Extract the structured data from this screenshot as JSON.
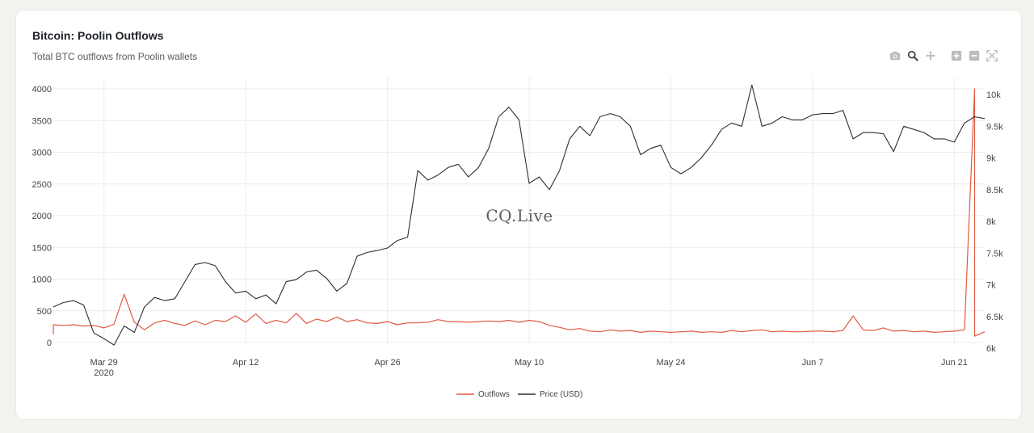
{
  "chart_title": "Bitcoin: Poolin Outflows",
  "chart_subtitle": "Total BTC outflows from Poolin wallets",
  "watermark": "CQ.Live",
  "toolbar": {
    "icons": [
      "camera-icon",
      "zoom-icon",
      "pan-icon",
      "zoom-in-icon",
      "zoom-out-icon",
      "autoscale-icon"
    ]
  },
  "colors": {
    "outflows": "#e05a42",
    "price": "#2b2f38",
    "grid": "#ececec"
  },
  "chart_data": {
    "type": "line",
    "title": "Bitcoin: Poolin Outflows",
    "subtitle": "Total BTC outflows from Poolin wallets",
    "x_tick_labels": [
      {
        "label": "Mar 29",
        "sub": "2020",
        "date": "2020-03-29"
      },
      {
        "label": "Apr 12",
        "sub": "",
        "date": "2020-04-12"
      },
      {
        "label": "Apr 26",
        "sub": "",
        "date": "2020-04-26"
      },
      {
        "label": "May 10",
        "sub": "",
        "date": "2020-05-10"
      },
      {
        "label": "May 24",
        "sub": "",
        "date": "2020-05-24"
      },
      {
        "label": "Jun 7",
        "sub": "",
        "date": "2020-06-07"
      },
      {
        "label": "Jun 21",
        "sub": "",
        "date": "2020-06-21"
      }
    ],
    "xrange": [
      "2020-03-24",
      "2020-06-24"
    ],
    "y_left": {
      "range": [
        0,
        4000
      ],
      "ticks": [
        "0",
        "500",
        "1000",
        "1500",
        "2000",
        "2500",
        "3000",
        "3500",
        "4000"
      ]
    },
    "y_right": {
      "range": [
        6000,
        10000
      ],
      "ticks": [
        "6k",
        "6.5k",
        "7k",
        "7.5k",
        "8k",
        "8.5k",
        "9k",
        "9.5k",
        "10k"
      ]
    },
    "grid": true,
    "legend_position": "bottom-center",
    "series": [
      {
        "name": "Outflows",
        "axis": "left",
        "style": "line",
        "points": [
          [
            "2020-03-24",
            130
          ],
          [
            "2020-03-24",
            280
          ],
          [
            "2020-03-25",
            270
          ],
          [
            "2020-03-26",
            280
          ],
          [
            "2020-03-27",
            260
          ],
          [
            "2020-03-28",
            270
          ],
          [
            "2020-03-29",
            230
          ],
          [
            "2020-03-30",
            290
          ],
          [
            "2020-03-31",
            760
          ],
          [
            "2020-04-01",
            320
          ],
          [
            "2020-04-02",
            200
          ],
          [
            "2020-04-03",
            310
          ],
          [
            "2020-04-04",
            350
          ],
          [
            "2020-04-05",
            300
          ],
          [
            "2020-04-06",
            270
          ],
          [
            "2020-04-07",
            340
          ],
          [
            "2020-04-08",
            280
          ],
          [
            "2020-04-09",
            350
          ],
          [
            "2020-04-10",
            330
          ],
          [
            "2020-04-11",
            420
          ],
          [
            "2020-04-12",
            320
          ],
          [
            "2020-04-13",
            450
          ],
          [
            "2020-04-14",
            300
          ],
          [
            "2020-04-15",
            350
          ],
          [
            "2020-04-16",
            310
          ],
          [
            "2020-04-17",
            460
          ],
          [
            "2020-04-18",
            300
          ],
          [
            "2020-04-19",
            370
          ],
          [
            "2020-04-20",
            330
          ],
          [
            "2020-04-21",
            400
          ],
          [
            "2020-04-22",
            330
          ],
          [
            "2020-04-23",
            360
          ],
          [
            "2020-04-24",
            310
          ],
          [
            "2020-04-25",
            300
          ],
          [
            "2020-04-26",
            330
          ],
          [
            "2020-04-27",
            280
          ],
          [
            "2020-04-28",
            310
          ],
          [
            "2020-04-29",
            310
          ],
          [
            "2020-04-30",
            320
          ],
          [
            "2020-05-01",
            360
          ],
          [
            "2020-05-02",
            330
          ],
          [
            "2020-05-03",
            330
          ],
          [
            "2020-05-04",
            320
          ],
          [
            "2020-05-05",
            330
          ],
          [
            "2020-05-06",
            340
          ],
          [
            "2020-05-07",
            330
          ],
          [
            "2020-05-08",
            350
          ],
          [
            "2020-05-09",
            320
          ],
          [
            "2020-05-10",
            350
          ],
          [
            "2020-05-11",
            330
          ],
          [
            "2020-05-12",
            270
          ],
          [
            "2020-05-13",
            240
          ],
          [
            "2020-05-14",
            200
          ],
          [
            "2020-05-15",
            220
          ],
          [
            "2020-05-16",
            180
          ],
          [
            "2020-05-17",
            170
          ],
          [
            "2020-05-18",
            200
          ],
          [
            "2020-05-19",
            180
          ],
          [
            "2020-05-20",
            190
          ],
          [
            "2020-05-21",
            160
          ],
          [
            "2020-05-22",
            180
          ],
          [
            "2020-05-23",
            170
          ],
          [
            "2020-05-24",
            160
          ],
          [
            "2020-05-25",
            170
          ],
          [
            "2020-05-26",
            180
          ],
          [
            "2020-05-27",
            160
          ],
          [
            "2020-05-28",
            170
          ],
          [
            "2020-05-29",
            160
          ],
          [
            "2020-05-30",
            190
          ],
          [
            "2020-05-31",
            170
          ],
          [
            "2020-06-01",
            190
          ],
          [
            "2020-06-02",
            200
          ],
          [
            "2020-06-03",
            170
          ],
          [
            "2020-06-04",
            180
          ],
          [
            "2020-06-05",
            170
          ],
          [
            "2020-06-06",
            170
          ],
          [
            "2020-06-07",
            180
          ],
          [
            "2020-06-08",
            180
          ],
          [
            "2020-06-09",
            170
          ],
          [
            "2020-06-10",
            190
          ],
          [
            "2020-06-11",
            420
          ],
          [
            "2020-06-12",
            200
          ],
          [
            "2020-06-13",
            190
          ],
          [
            "2020-06-14",
            230
          ],
          [
            "2020-06-15",
            180
          ],
          [
            "2020-06-16",
            190
          ],
          [
            "2020-06-17",
            170
          ],
          [
            "2020-06-18",
            180
          ],
          [
            "2020-06-19",
            160
          ],
          [
            "2020-06-20",
            170
          ],
          [
            "2020-06-21",
            180
          ],
          [
            "2020-06-22",
            200
          ],
          [
            "2020-06-23",
            4000
          ],
          [
            "2020-06-23",
            100
          ],
          [
            "2020-06-24",
            170
          ]
        ]
      },
      {
        "name": "Price (USD)",
        "axis": "right",
        "style": "line",
        "points": [
          [
            "2020-03-24",
            6650
          ],
          [
            "2020-03-25",
            6720
          ],
          [
            "2020-03-26",
            6750
          ],
          [
            "2020-03-27",
            6680
          ],
          [
            "2020-03-28",
            6240
          ],
          [
            "2020-03-29",
            6150
          ],
          [
            "2020-03-30",
            6050
          ],
          [
            "2020-03-31",
            6350
          ],
          [
            "2020-04-01",
            6250
          ],
          [
            "2020-04-02",
            6650
          ],
          [
            "2020-04-03",
            6800
          ],
          [
            "2020-04-04",
            6750
          ],
          [
            "2020-04-05",
            6780
          ],
          [
            "2020-04-06",
            7050
          ],
          [
            "2020-04-07",
            7320
          ],
          [
            "2020-04-08",
            7350
          ],
          [
            "2020-04-09",
            7300
          ],
          [
            "2020-04-10",
            7050
          ],
          [
            "2020-04-11",
            6870
          ],
          [
            "2020-04-12",
            6900
          ],
          [
            "2020-04-13",
            6780
          ],
          [
            "2020-04-14",
            6840
          ],
          [
            "2020-04-15",
            6700
          ],
          [
            "2020-04-16",
            7050
          ],
          [
            "2020-04-17",
            7080
          ],
          [
            "2020-04-18",
            7200
          ],
          [
            "2020-04-19",
            7230
          ],
          [
            "2020-04-20",
            7100
          ],
          [
            "2020-04-21",
            6900
          ],
          [
            "2020-04-22",
            7020
          ],
          [
            "2020-04-23",
            7450
          ],
          [
            "2020-04-24",
            7510
          ],
          [
            "2020-04-25",
            7540
          ],
          [
            "2020-04-26",
            7580
          ],
          [
            "2020-04-27",
            7700
          ],
          [
            "2020-04-28",
            7750
          ],
          [
            "2020-04-29",
            8800
          ],
          [
            "2020-04-30",
            8650
          ],
          [
            "2020-05-01",
            8730
          ],
          [
            "2020-05-02",
            8850
          ],
          [
            "2020-05-03",
            8900
          ],
          [
            "2020-05-04",
            8700
          ],
          [
            "2020-05-05",
            8850
          ],
          [
            "2020-05-06",
            9150
          ],
          [
            "2020-05-07",
            9650
          ],
          [
            "2020-05-08",
            9800
          ],
          [
            "2020-05-09",
            9600
          ],
          [
            "2020-05-10",
            8600
          ],
          [
            "2020-05-11",
            8700
          ],
          [
            "2020-05-12",
            8500
          ],
          [
            "2020-05-13",
            8800
          ],
          [
            "2020-05-14",
            9300
          ],
          [
            "2020-05-15",
            9500
          ],
          [
            "2020-05-16",
            9350
          ],
          [
            "2020-05-17",
            9650
          ],
          [
            "2020-05-18",
            9700
          ],
          [
            "2020-05-19",
            9650
          ],
          [
            "2020-05-20",
            9500
          ],
          [
            "2020-05-21",
            9050
          ],
          [
            "2020-05-22",
            9150
          ],
          [
            "2020-05-23",
            9200
          ],
          [
            "2020-05-24",
            8850
          ],
          [
            "2020-05-25",
            8750
          ],
          [
            "2020-05-26",
            8850
          ],
          [
            "2020-05-27",
            9000
          ],
          [
            "2020-05-28",
            9200
          ],
          [
            "2020-05-29",
            9450
          ],
          [
            "2020-05-30",
            9550
          ],
          [
            "2020-05-31",
            9500
          ],
          [
            "2020-06-01",
            10150
          ],
          [
            "2020-06-02",
            9500
          ],
          [
            "2020-06-03",
            9550
          ],
          [
            "2020-06-04",
            9650
          ],
          [
            "2020-06-05",
            9600
          ],
          [
            "2020-06-06",
            9600
          ],
          [
            "2020-06-07",
            9680
          ],
          [
            "2020-06-08",
            9700
          ],
          [
            "2020-06-09",
            9700
          ],
          [
            "2020-06-10",
            9750
          ],
          [
            "2020-06-11",
            9300
          ],
          [
            "2020-06-12",
            9400
          ],
          [
            "2020-06-13",
            9400
          ],
          [
            "2020-06-14",
            9380
          ],
          [
            "2020-06-15",
            9100
          ],
          [
            "2020-06-16",
            9500
          ],
          [
            "2020-06-17",
            9450
          ],
          [
            "2020-06-18",
            9400
          ],
          [
            "2020-06-19",
            9300
          ],
          [
            "2020-06-20",
            9300
          ],
          [
            "2020-06-21",
            9250
          ],
          [
            "2020-06-22",
            9550
          ],
          [
            "2020-06-23",
            9650
          ],
          [
            "2020-06-24",
            9620
          ]
        ]
      }
    ]
  }
}
